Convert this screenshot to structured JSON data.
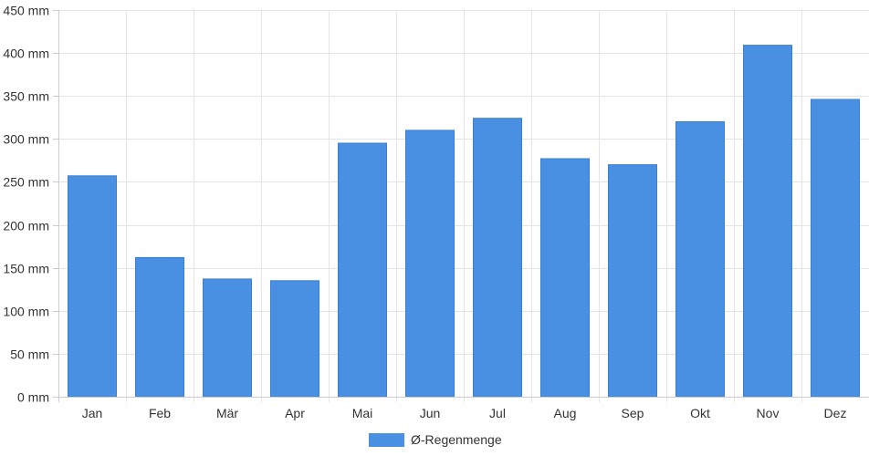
{
  "chart_data": {
    "type": "bar",
    "categories": [
      "Jan",
      "Feb",
      "Mär",
      "Apr",
      "Mai",
      "Jun",
      "Jul",
      "Aug",
      "Sep",
      "Okt",
      "Nov",
      "Dez"
    ],
    "series": [
      {
        "name": "Ø-Regenmenge",
        "color": "#4a90e2",
        "values": [
          257,
          162,
          137,
          135,
          295,
          310,
          324,
          277,
          270,
          320,
          409,
          346
        ]
      }
    ],
    "ylim": [
      0,
      450
    ],
    "y_ticks": [
      0,
      50,
      100,
      150,
      200,
      250,
      300,
      350,
      400,
      450
    ],
    "y_unit": "mm",
    "grid": true,
    "legend_position": "bottom-center"
  }
}
